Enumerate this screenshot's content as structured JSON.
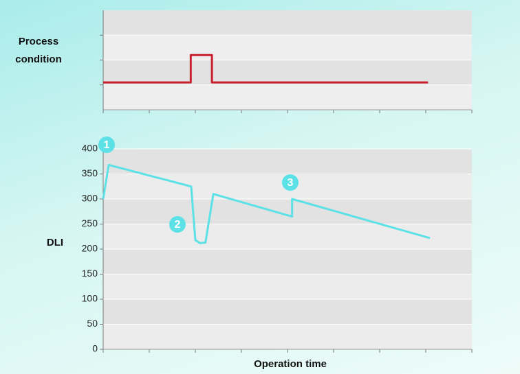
{
  "chart_data": [
    {
      "type": "line",
      "ylabel": "Process condition",
      "x": [
        0,
        1.9,
        1.9,
        2.36,
        2.36,
        7.05
      ],
      "series": [
        {
          "color": "#c8202f",
          "values": [
            1.1,
            1.1,
            2.2,
            2.2,
            1.1,
            1.1
          ]
        }
      ],
      "xlim": [
        0,
        8
      ],
      "xticks": [
        0,
        1,
        2,
        3,
        4,
        5,
        6,
        7,
        8
      ],
      "ylim": [
        0,
        4
      ],
      "yticks": [
        1,
        2,
        3
      ],
      "grid": true
    },
    {
      "type": "line",
      "ylabel": "DLI",
      "xlabel": "Operation time",
      "x": [
        0,
        0.12,
        1.91,
        2.0,
        2.1,
        2.22,
        2.39,
        4.1,
        4.1,
        7.09
      ],
      "series": [
        {
          "color": "#5ce1e6",
          "values": [
            300,
            368,
            325,
            218,
            212,
            213,
            310,
            265,
            300,
            222
          ]
        }
      ],
      "xlim": [
        0,
        8
      ],
      "xticks": [
        0,
        1,
        2,
        3,
        4,
        5,
        6,
        7,
        8
      ],
      "ylim": [
        0,
        400
      ],
      "yticks": [
        0,
        50,
        100,
        150,
        200,
        250,
        300,
        350,
        400
      ],
      "grid": true,
      "annotations": [
        "1",
        "2",
        "3"
      ]
    }
  ]
}
